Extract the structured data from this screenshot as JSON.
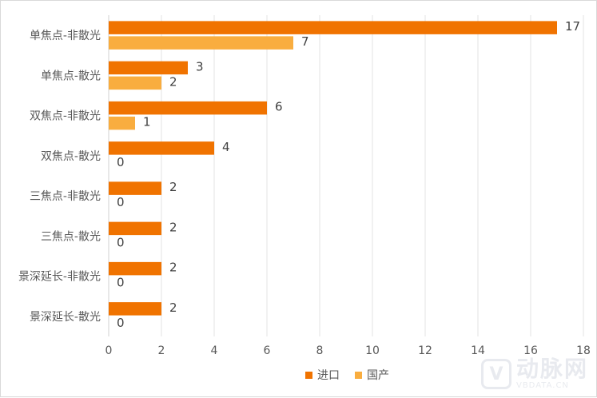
{
  "chart_data": {
    "type": "bar",
    "orientation": "horizontal",
    "categories": [
      "单焦点-非散光",
      "单焦点-散光",
      "双焦点-非散光",
      "双焦点-散光",
      "三焦点-非散光",
      "三焦点-散光",
      "景深延长-非散光",
      "景深延长-散光"
    ],
    "series": [
      {
        "name": "进口",
        "color": "#f07300",
        "values": [
          17,
          3,
          6,
          4,
          2,
          2,
          2,
          2
        ]
      },
      {
        "name": "国产",
        "color": "#f9ad3f",
        "values": [
          7,
          2,
          1,
          0,
          0,
          0,
          0,
          0
        ]
      }
    ],
    "xlim": [
      0,
      18
    ],
    "xticks": [
      0,
      2,
      4,
      6,
      8,
      10,
      12,
      14,
      16,
      18
    ],
    "grid": true,
    "legend": "bottom",
    "title": "",
    "xlabel": "",
    "ylabel": ""
  },
  "watermark": {
    "brand": "动脉网",
    "site": "VBDATA.CN"
  }
}
